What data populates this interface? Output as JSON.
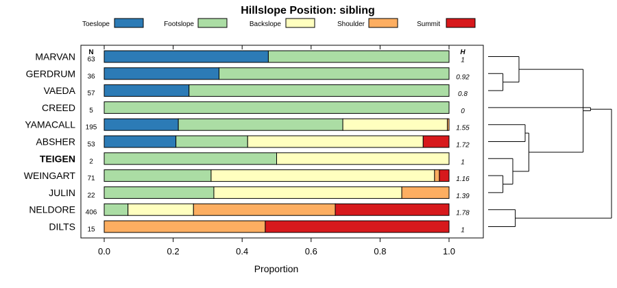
{
  "chart_data": {
    "type": "bar",
    "orientation": "horizontal",
    "stacked": true,
    "title": "Hillslope Position: sibling",
    "xlabel": "Proportion",
    "xlim": [
      0,
      1
    ],
    "xticks": [
      "0.0",
      "0.2",
      "0.4",
      "0.6",
      "0.8",
      "1.0"
    ],
    "xtick_values": [
      0,
      0.2,
      0.4,
      0.6,
      0.8,
      1.0
    ],
    "n_header": "N",
    "h_header": "H",
    "legend_position": "top",
    "legend": [
      {
        "name": "Toeslope",
        "color": "#2c7bb6"
      },
      {
        "name": "Footslope",
        "color": "#abdda4"
      },
      {
        "name": "Backslope",
        "color": "#ffffbf"
      },
      {
        "name": "Shoulder",
        "color": "#fdae61"
      },
      {
        "name": "Summit",
        "color": "#d7191c"
      }
    ],
    "rows": [
      {
        "label": "MARVAN",
        "bold": false,
        "n": "63",
        "h": "1",
        "values": [
          0.476,
          0.524,
          0,
          0,
          0
        ]
      },
      {
        "label": "GERDRUM",
        "bold": false,
        "n": "36",
        "h": "0.92",
        "values": [
          0.333,
          0.667,
          0,
          0,
          0
        ]
      },
      {
        "label": "VAEDA",
        "bold": false,
        "n": "57",
        "h": "0.8",
        "values": [
          0.246,
          0.754,
          0,
          0,
          0
        ]
      },
      {
        "label": "CREED",
        "bold": false,
        "n": "5",
        "h": "0",
        "values": [
          0,
          1.0,
          0,
          0,
          0
        ]
      },
      {
        "label": "YAMACALL",
        "bold": false,
        "n": "195",
        "h": "1.55",
        "values": [
          0.215,
          0.477,
          0.303,
          0.005,
          0
        ]
      },
      {
        "label": "ABSHER",
        "bold": false,
        "n": "53",
        "h": "1.72",
        "values": [
          0.208,
          0.208,
          0.509,
          0,
          0.075
        ]
      },
      {
        "label": "TEIGEN",
        "bold": true,
        "n": "2",
        "h": "1",
        "values": [
          0,
          0.5,
          0.5,
          0,
          0
        ]
      },
      {
        "label": "WEINGART",
        "bold": false,
        "n": "71",
        "h": "1.16",
        "values": [
          0,
          0.31,
          0.648,
          0.014,
          0.028
        ]
      },
      {
        "label": "JULIN",
        "bold": false,
        "n": "22",
        "h": "1.39",
        "values": [
          0,
          0.318,
          0.545,
          0.137,
          0
        ]
      },
      {
        "label": "NELDORE",
        "bold": false,
        "n": "406",
        "h": "1.78",
        "values": [
          0,
          0.069,
          0.19,
          0.411,
          0.33
        ]
      },
      {
        "label": "DILTS",
        "bold": false,
        "n": "15",
        "h": "1",
        "values": [
          0,
          0,
          0,
          0.467,
          0.533
        ]
      }
    ],
    "dendrogram": {
      "merges": [
        {
          "id": "A",
          "children": [
            2,
            1
          ],
          "height": 0.12
        },
        {
          "id": "B",
          "children": [
            0,
            "A"
          ],
          "height": 0.25
        },
        {
          "id": "C",
          "children": [
            4,
            5
          ],
          "height": 0.3
        },
        {
          "id": "D",
          "children": [
            8,
            7
          ],
          "height": 0.12
        },
        {
          "id": "E",
          "children": [
            6,
            "D"
          ],
          "height": 0.2
        },
        {
          "id": "F",
          "children": [
            "C",
            "E"
          ],
          "height": 0.33
        },
        {
          "id": "G",
          "children": [
            9,
            10
          ],
          "height": 0.22
        },
        {
          "id": "H",
          "children": [
            "B",
            "F"
          ],
          "height": 0.77
        },
        {
          "id": "I",
          "children": [
            "H",
            3
          ],
          "height": 0.83
        },
        {
          "id": "J",
          "children": [
            "I",
            "G"
          ],
          "height": 1.0
        }
      ]
    }
  }
}
